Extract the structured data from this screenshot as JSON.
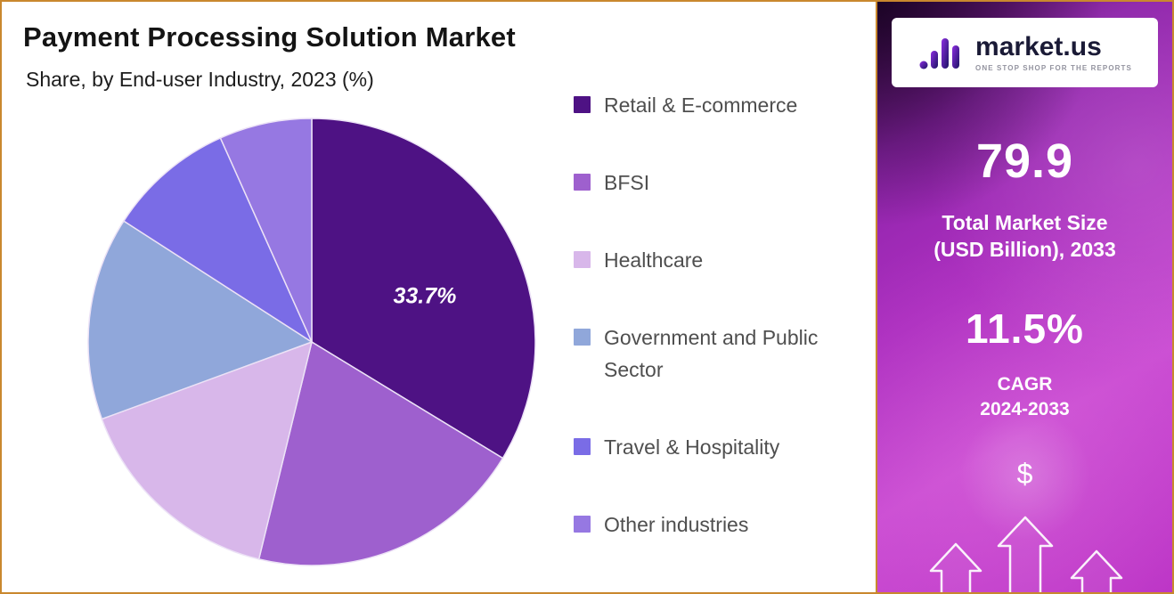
{
  "header": {
    "title": "Payment Processing Solution Market",
    "subtitle": "Share, by End-user Industry, 2023 (%)"
  },
  "chart_data": {
    "type": "pie",
    "title": "Payment Processing Solution Market",
    "subtitle": "Share, by End-user Industry, 2023 (%)",
    "unit": "%",
    "legend_position": "right",
    "slices": [
      {
        "name": "Retail & E-commerce",
        "value": 33.7,
        "label": "33.7%",
        "color": "#4E1284"
      },
      {
        "name": "BFSI",
        "value": 20.1,
        "label": "",
        "color": "#9E60CE"
      },
      {
        "name": "Healthcare",
        "value": 15.6,
        "label": "",
        "color": "#D8B7EA"
      },
      {
        "name": "Government and Public Sector",
        "value": 14.7,
        "label": "",
        "color": "#90A7DA"
      },
      {
        "name": "Travel & Hospitality",
        "value": 9.2,
        "label": "",
        "color": "#7A6CE6"
      },
      {
        "name": "Other industries",
        "value": 6.7,
        "label": "",
        "color": "#9678E2"
      }
    ]
  },
  "sidebar": {
    "logo": {
      "brand": "market.us",
      "tagline": "ONE STOP SHOP FOR THE REPORTS"
    },
    "stat1": {
      "value": "79.9",
      "label_line1": "Total Market Size",
      "label_line2": "(USD Billion), 2033"
    },
    "stat2": {
      "value": "11.5%",
      "label_line1": "CAGR",
      "label_line2": "2024-2033"
    },
    "dollar_symbol": "$"
  }
}
